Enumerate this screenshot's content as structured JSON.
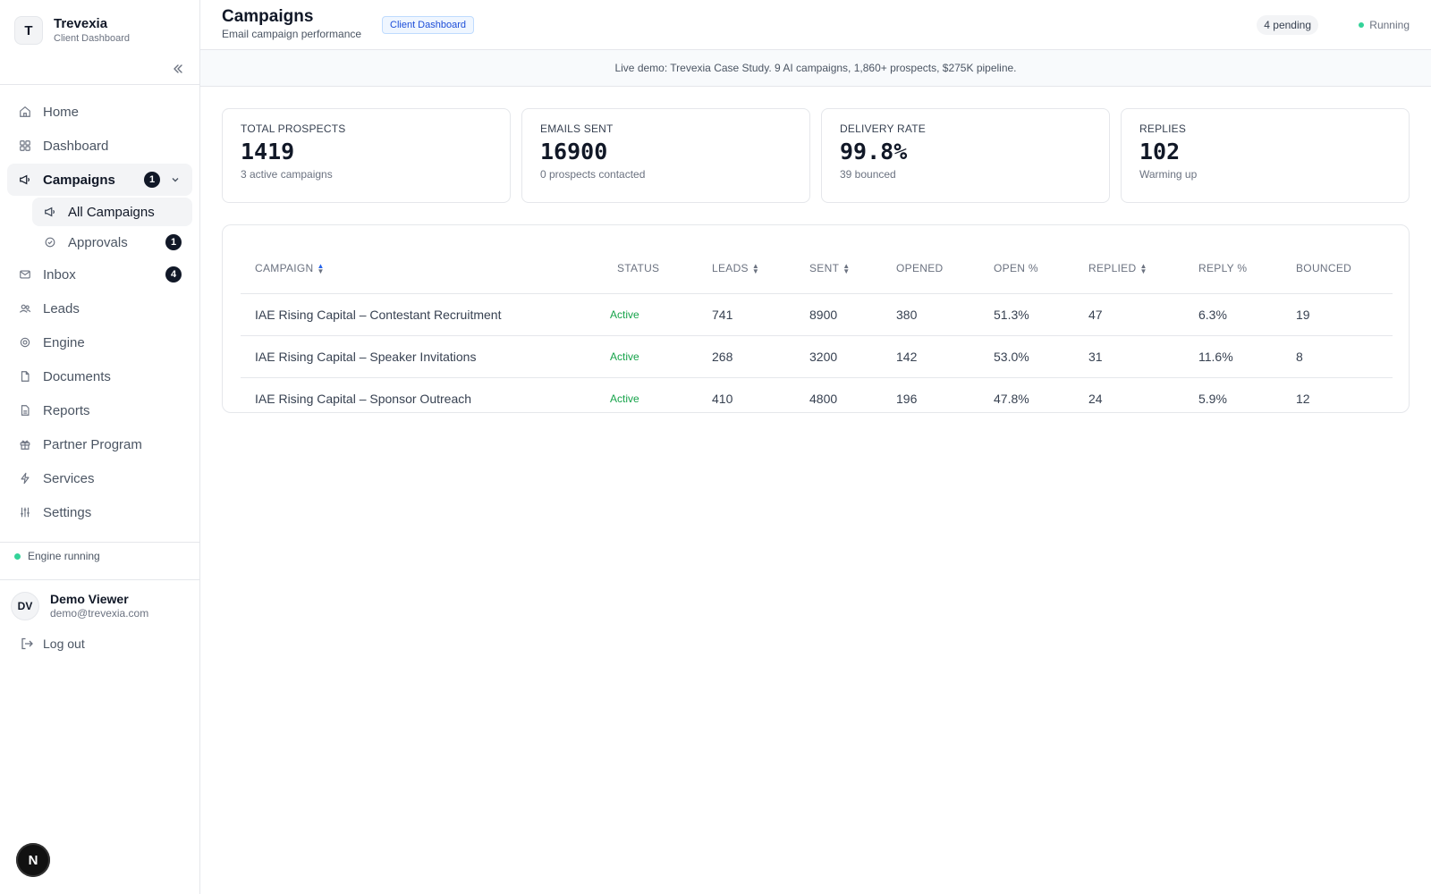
{
  "brand": {
    "initial": "T",
    "name": "Trevexia",
    "subtitle": "Client Dashboard"
  },
  "nav": {
    "items": [
      {
        "label": "Home",
        "icon": "home-icon"
      },
      {
        "label": "Dashboard",
        "icon": "grid-icon"
      },
      {
        "label": "Campaigns",
        "icon": "megaphone-icon",
        "badge": "1",
        "active": true
      },
      {
        "label": "Inbox",
        "icon": "mail-icon",
        "badge": "4"
      },
      {
        "label": "Leads",
        "icon": "users-icon"
      },
      {
        "label": "Engine",
        "icon": "cog-icon"
      },
      {
        "label": "Documents",
        "icon": "file-icon"
      },
      {
        "label": "Reports",
        "icon": "report-icon"
      },
      {
        "label": "Partner Program",
        "icon": "gift-icon"
      },
      {
        "label": "Services",
        "icon": "bolt-icon"
      },
      {
        "label": "Settings",
        "icon": "sliders-icon"
      }
    ],
    "campaigns_sub": [
      {
        "label": "All Campaigns",
        "icon": "megaphone-icon",
        "active": true
      },
      {
        "label": "Approvals",
        "icon": "check-circle-icon",
        "badge": "1"
      }
    ]
  },
  "engine_status": "Engine running",
  "user": {
    "initials": "DV",
    "name": "Demo Viewer",
    "email": "demo@trevexia.com"
  },
  "logout_label": "Log out",
  "next_badge": "N",
  "header": {
    "title": "Campaigns",
    "subtitle": "Email campaign performance",
    "tag": "Client Dashboard",
    "pending": "4 pending",
    "running": "Running"
  },
  "banner": "Live demo: Trevexia Case Study. 9 AI campaigns, 1,860+ prospects, $275K pipeline.",
  "stats": [
    {
      "label": "TOTAL PROSPECTS",
      "value": "1419",
      "note": "3 active campaigns"
    },
    {
      "label": "EMAILS SENT",
      "value": "16900",
      "note": "0 prospects contacted"
    },
    {
      "label": "DELIVERY RATE",
      "value": "99.8%",
      "note": "39 bounced"
    },
    {
      "label": "REPLIES",
      "value": "102",
      "note": "Warming up"
    }
  ],
  "table": {
    "headers": [
      "CAMPAIGN",
      "STATUS",
      "LEADS",
      "SENT",
      "OPENED",
      "OPEN %",
      "REPLIED",
      "REPLY %",
      "BOUNCED"
    ],
    "rows": [
      [
        "IAE Rising Capital – Contestant Recruitment",
        "Active",
        "741",
        "8900",
        "380",
        "51.3%",
        "47",
        "6.3%",
        "19"
      ],
      [
        "IAE Rising Capital – Speaker Invitations",
        "Active",
        "268",
        "3200",
        "142",
        "53.0%",
        "31",
        "11.6%",
        "8"
      ],
      [
        "IAE Rising Capital – Sponsor Outreach",
        "Active",
        "410",
        "4800",
        "196",
        "47.8%",
        "24",
        "5.9%",
        "12"
      ]
    ]
  }
}
